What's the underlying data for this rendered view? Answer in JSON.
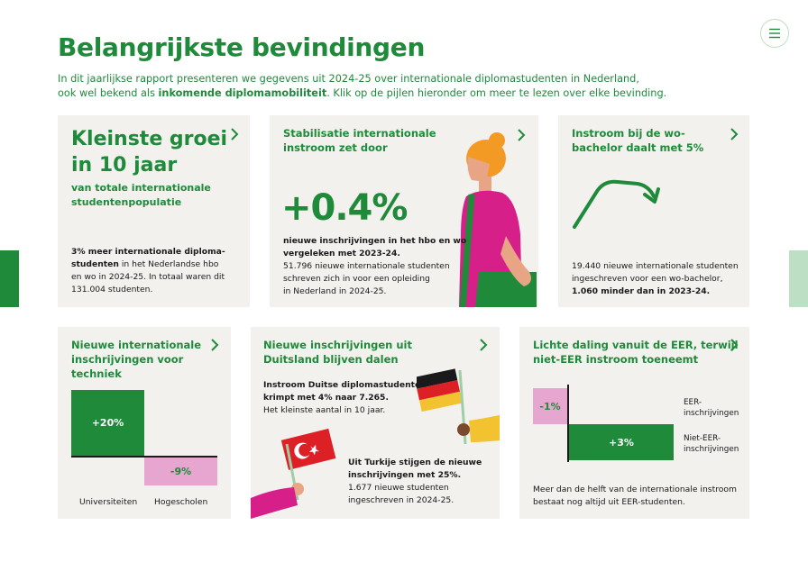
{
  "header": {
    "title": "Belangrijkste bevindingen",
    "intro_part1": "In dit jaarlijkse rapport presenteren we gegevens uit 2024-25 over internationale diplomastudenten in Nederland,",
    "intro_part2": "ook wel bekend als ",
    "intro_bold": "inkomende diplomamobiliteit",
    "intro_part3": ". Klik op de pijlen hieronder om meer te lezen over elke bevinding."
  },
  "menu": {
    "icon": "hamburger-icon"
  },
  "cards": {
    "growth": {
      "headline_1": "Kleinste groei",
      "headline_2": "in 10 jaar",
      "subtitle_1": "van totale internationale",
      "subtitle_2": "studentenpopulatie",
      "body_bold_1": "3% meer internationale diploma-",
      "body_bold_2": "studenten",
      "body_2_rest": " in het Nederlandse hbo",
      "body_3": "en wo in 2024-25. In totaal waren dit",
      "body_4": "131.004 studenten."
    },
    "stabilisation": {
      "title_1": "Stabilisatie internationale",
      "title_2": "instroom zet door",
      "big_value": "+0.4%",
      "bold_1": "nieuwe inschrijvingen in het hbo en wo",
      "bold_2": "vergeleken met 2023-24.",
      "body_1": "51.796 nieuwe internationale studenten",
      "body_2": "schreven zich in voor een opleiding",
      "body_3": "in Nederland in 2024-25."
    },
    "bachelor": {
      "title_1": "Instroom bij de wo-",
      "title_2": "bachelor daalt met 5%",
      "body_1": "19.440 nieuwe internationale studenten",
      "body_2": "ingeschreven voor een wo-bachelor,",
      "bold_3": "1.060 minder dan in 2023-24."
    },
    "engineering": {
      "title_1": "Nieuwe internationale",
      "title_2": "inschrijvingen voor",
      "title_3": "techniek",
      "bar_uni_label": "+20%",
      "bar_hbo_label": "-9%",
      "cat_uni": "Universiteiten",
      "cat_hbo": "Hogescholen",
      "values": {
        "universiteiten": 20,
        "hogescholen": -9
      }
    },
    "germany": {
      "title_1": "Nieuwe inschrijvingen uit",
      "title_2": "Duitsland blijven dalen",
      "bold_1": "Instroom Duitse diplomastudenten",
      "bold_2": "krimpt met 4% naar 7.265.",
      "body_3": "Het kleinste aantal in 10 jaar.",
      "turkey_bold_1": "Uit Turkije stijgen de nieuwe",
      "turkey_bold_2": "inschrijvingen met 25%.",
      "turkey_body_1": "1.677 nieuwe studenten",
      "turkey_body_2": "ingeschreven in 2024-25."
    },
    "eea": {
      "title_1": "Lichte daling vanuit de EER, terwijl",
      "title_2": "niet-EER instroom toeneemt",
      "bar_eea_label": "-1%",
      "bar_noneea_label": "+3%",
      "legend_eea_1": "EER-",
      "legend_eea_2": "inschrijvingen",
      "legend_noneea_1": "Niet-EER-",
      "legend_noneea_2": "inschrijvingen",
      "body_1": "Meer dan de helft van de internationale instroom",
      "body_2": "bestaat nog altijd uit EER-studenten.",
      "values": {
        "eer": -1,
        "niet_eer": 3
      }
    }
  },
  "colors": {
    "green": "#1e8a3a",
    "pink": "#e6a6cf",
    "card_bg": "#f3f1ee",
    "light_green": "#bde0c4"
  }
}
